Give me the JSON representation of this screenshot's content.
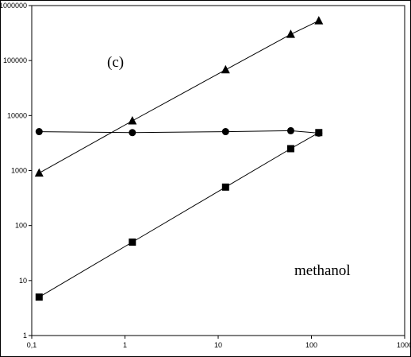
{
  "chart_data": {
    "type": "line",
    "x_scale": "log",
    "y_scale": "log",
    "xlim": [
      0.1,
      1000
    ],
    "ylim": [
      1,
      1000000
    ],
    "x_tick_labels": [
      "0,1",
      "1",
      "10",
      "100",
      "1000"
    ],
    "y_tick_labels": [
      "1",
      "10",
      "100",
      "1000",
      "10000",
      "100000",
      "1000000"
    ],
    "grid": false,
    "annotations": [
      "(c)",
      "methanol"
    ],
    "series": [
      {
        "marker": "triangle",
        "x": [
          0.12,
          1.2,
          12,
          60,
          120
        ],
        "y": [
          900,
          8000,
          68000,
          300000,
          530000
        ]
      },
      {
        "marker": "circle",
        "x": [
          0.12,
          1.2,
          12,
          60,
          120
        ],
        "y": [
          5100,
          4900,
          5100,
          5300,
          4800
        ]
      },
      {
        "marker": "square",
        "x": [
          0.12,
          1.2,
          12,
          60,
          120
        ],
        "y": [
          5,
          50,
          500,
          2500,
          4900
        ]
      }
    ]
  }
}
